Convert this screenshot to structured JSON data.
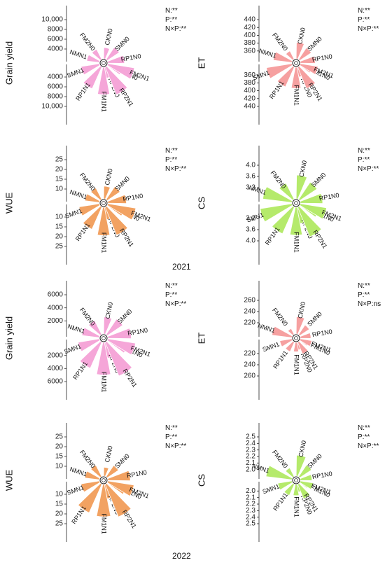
{
  "figure": {
    "years": [
      "2021",
      "2022"
    ]
  },
  "chart_data": [
    {
      "type": "radial-bar",
      "ylabel": "Grain yield",
      "year": "2021",
      "upper_ticks": [
        "10,000",
        "8000",
        "6000",
        "4000"
      ],
      "lower_ticks": [
        "4000",
        "6000",
        "8000",
        "10,000"
      ],
      "upper_range": [
        2000,
        10000
      ],
      "lower_range": [
        2000,
        10000
      ],
      "upper_categories": [
        "RP2N0",
        "FM1N0",
        "RP1N0",
        "SMN0",
        "CKN0",
        "FM2N0",
        "NMN1"
      ],
      "upper_values": [
        4300,
        5200,
        5400,
        5000,
        4300,
        4300,
        4600
      ],
      "lower_categories": [
        "SMN1",
        "RP1N1",
        "FM1N1",
        "RP2N1",
        "FM2N1"
      ],
      "lower_values": [
        5800,
        6900,
        7600,
        8100,
        7500
      ],
      "annotations": [
        "N:**",
        "P:**",
        "N×P:**"
      ],
      "color": "#f5a6d8"
    },
    {
      "type": "radial-bar",
      "ylabel": "ET",
      "year": "2021",
      "upper_ticks": [
        "440",
        "420",
        "400",
        "380",
        "360"
      ],
      "lower_ticks": [
        "360",
        "380",
        "400",
        "420",
        "440"
      ],
      "upper_range": [
        340,
        440
      ],
      "lower_range": [
        340,
        440
      ],
      "upper_categories": [
        "RP2N0",
        "FM1N0",
        "RP1N0",
        "SMN0",
        "CKN0",
        "FM2N0",
        "NMN1"
      ],
      "upper_values": [
        366,
        372,
        378,
        376,
        382,
        364,
        388
      ],
      "lower_categories": [
        "SMN1",
        "RP1N1",
        "FM1N1",
        "RP2N1",
        "FM2N1"
      ],
      "lower_values": [
        406,
        396,
        394,
        400,
        386
      ],
      "annotations": [
        "N:**",
        "P:**",
        "N×P:**"
      ],
      "color": "#f6a0a0"
    },
    {
      "type": "radial-bar",
      "ylabel": "WUE",
      "year": "2021",
      "upper_ticks": [
        "25",
        "20",
        "15",
        "10"
      ],
      "lower_ticks": [
        "10",
        "15",
        "20",
        "25"
      ],
      "upper_range": [
        5,
        25
      ],
      "lower_range": [
        5,
        25
      ],
      "upper_categories": [
        "RP2N0",
        "FM1N0",
        "RP1N0",
        "SMN0",
        "CKN0",
        "FM2N0",
        "NMN1"
      ],
      "upper_values": [
        11.5,
        14.0,
        14.5,
        13.0,
        11.5,
        11.5,
        12.5
      ],
      "lower_categories": [
        "SMN1",
        "RP1N1",
        "FM1N1",
        "RP2N1",
        "FM2N1"
      ],
      "lower_values": [
        15.5,
        17.5,
        19.5,
        20.5,
        19.5
      ],
      "annotations": [
        "N:**",
        "P:**",
        "N×P:**"
      ],
      "color": "#f2a262"
    },
    {
      "type": "radial-bar",
      "ylabel": "CS",
      "year": "2021",
      "upper_ticks": [
        "4.0",
        "3.6",
        "3.2"
      ],
      "lower_ticks": [
        "3.2",
        "3.6",
        "4.0"
      ],
      "upper_range": [
        2.8,
        4.2
      ],
      "lower_range": [
        2.8,
        4.2
      ],
      "upper_categories": [
        "RP2N0",
        "FM1N0",
        "RP1N0",
        "SMN0",
        "CKN0",
        "FM2N0",
        "NMN1"
      ],
      "upper_values": [
        3.4,
        3.5,
        3.6,
        3.55,
        3.65,
        3.45,
        3.85
      ],
      "lower_categories": [
        "SMN1",
        "RP1N1",
        "FM1N1",
        "RP2N1",
        "FM2N1"
      ],
      "lower_values": [
        3.95,
        3.85,
        3.8,
        3.95,
        3.75
      ],
      "annotations": [
        "N:**",
        "P:**",
        "N×P:**"
      ],
      "color": "#b5ea6b"
    },
    {
      "type": "radial-bar",
      "ylabel": "Grain yield",
      "year": "2022",
      "upper_ticks": [
        "6000",
        "4000",
        "2000"
      ],
      "lower_ticks": [
        "2000",
        "4000",
        "6000"
      ],
      "upper_range": [
        0,
        6000
      ],
      "lower_range": [
        0,
        6000
      ],
      "upper_categories": [
        "RP2N0",
        "FM1N0",
        "RP1N0",
        "SMN0",
        "CKN0",
        "FM2N0",
        "NMN1"
      ],
      "upper_values": [
        2500,
        3200,
        3600,
        2900,
        2600,
        2400,
        2700
      ],
      "lower_categories": [
        "SMN1",
        "RP1N1",
        "FM1N1",
        "RP2N1",
        "FM2N1"
      ],
      "lower_values": [
        3300,
        4400,
        5000,
        5600,
        4300
      ],
      "annotations": [
        "N:**",
        "P:**",
        "N×P:**"
      ],
      "color": "#f5a6d8"
    },
    {
      "type": "radial-bar",
      "ylabel": "ET",
      "year": "2022",
      "upper_ticks": [
        "260",
        "240",
        "220"
      ],
      "lower_ticks": [
        "220",
        "240",
        "260"
      ],
      "upper_range": [
        200,
        270
      ],
      "lower_range": [
        200,
        270
      ],
      "upper_categories": [
        "RP2N0",
        "FM1N0",
        "RP1N0",
        "SMN0",
        "CKN0",
        "FM2N0",
        "NMN1"
      ],
      "upper_values": [
        214,
        216,
        219,
        221,
        231,
        212,
        236
      ],
      "lower_categories": [
        "SMN1",
        "RP1N1",
        "FM1N1",
        "RP2N1",
        "FM2N1"
      ],
      "lower_values": [
        222,
        219,
        217,
        223,
        221
      ],
      "annotations": [
        "N:**",
        "P:**",
        "N×P:ns"
      ],
      "color": "#f6a0a0"
    },
    {
      "type": "radial-bar",
      "ylabel": "WUE",
      "year": "2022",
      "upper_ticks": [
        "25",
        "20",
        "15",
        "10"
      ],
      "lower_ticks": [
        "10",
        "15",
        "20",
        "25"
      ],
      "upper_range": [
        5,
        25
      ],
      "lower_range": [
        5,
        25
      ],
      "upper_categories": [
        "RP2N0",
        "FM1N0",
        "RP1N0",
        "SMN0",
        "CKN0",
        "FM2N0",
        "NMN1"
      ],
      "upper_values": [
        12.5,
        15.0,
        16.5,
        12.0,
        9.5,
        11.5,
        12.5
      ],
      "lower_categories": [
        "SMN1",
        "RP1N1",
        "FM1N1",
        "RP2N1",
        "FM2N1"
      ],
      "lower_values": [
        14.5,
        21.0,
        21.5,
        23.0,
        18.5
      ],
      "annotations": [
        "N:**",
        "P:**",
        "N×P:**"
      ],
      "color": "#f2a262"
    },
    {
      "type": "radial-bar",
      "ylabel": "CS",
      "year": "2022",
      "upper_ticks": [
        "2.5",
        "2.4",
        "2.3",
        "2.2",
        "2.1",
        "2.0"
      ],
      "lower_ticks": [
        "2.0",
        "2.1",
        "2.2",
        "2.3",
        "2.4",
        "2.5"
      ],
      "upper_range": [
        1.9,
        2.5
      ],
      "lower_range": [
        1.9,
        2.5
      ],
      "upper_categories": [
        "RP2N0",
        "FM1N0",
        "RP1N0",
        "SMN0",
        "CKN0",
        "FM2N0",
        "NMN1"
      ],
      "upper_values": [
        2.02,
        2.04,
        2.08,
        2.12,
        2.22,
        2.05,
        2.3
      ],
      "lower_categories": [
        "SMN1",
        "RP1N1",
        "FM1N1",
        "RP2N1",
        "FM2N1"
      ],
      "lower_values": [
        2.12,
        2.09,
        2.07,
        2.14,
        2.1
      ],
      "annotations": [
        "N:**",
        "P:**",
        "N×P:**"
      ],
      "color": "#b5ea6b"
    }
  ]
}
